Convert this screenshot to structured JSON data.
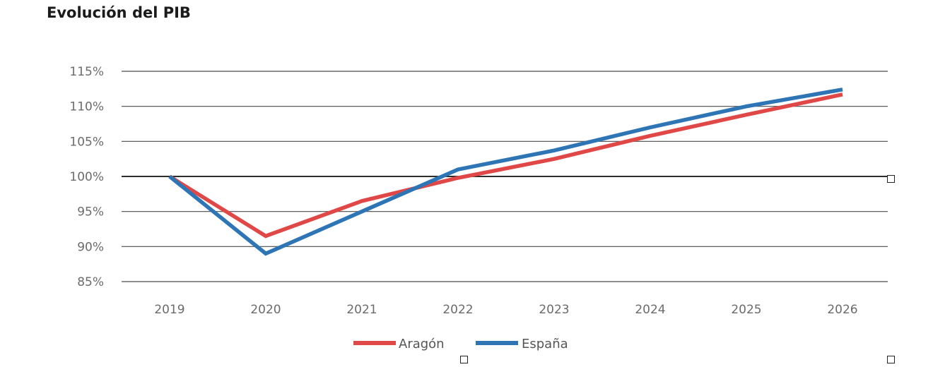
{
  "chart_data": {
    "type": "line",
    "title": "Evolución del PIB",
    "categories": [
      "2019",
      "2020",
      "2021",
      "2022",
      "2023",
      "2024",
      "2025",
      "2026"
    ],
    "series": [
      {
        "name": "Aragón",
        "color": "#e04848",
        "values": [
          100,
          91.5,
          96.5,
          99.8,
          102.5,
          105.8,
          108.8,
          111.7
        ]
      },
      {
        "name": "España",
        "color": "#2e75b6",
        "values": [
          100,
          89.0,
          95.0,
          101.0,
          103.7,
          107.0,
          110.0,
          112.4
        ]
      }
    ],
    "yticks": [
      "85%",
      "90%",
      "95%",
      "100%",
      "105%",
      "110%",
      "115%"
    ],
    "ylim": [
      85,
      115
    ],
    "grid": true,
    "legend_position": "bottom-center"
  }
}
